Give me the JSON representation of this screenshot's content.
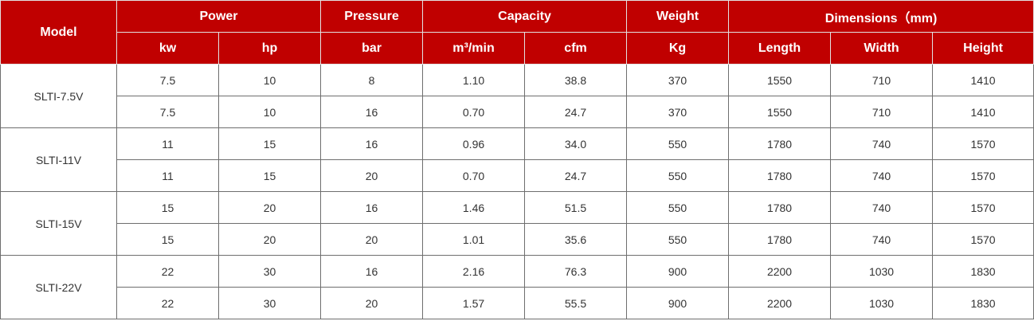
{
  "header": {
    "model": "Model",
    "power": "Power",
    "pressure": "Pressure",
    "capacity": "Capacity",
    "weight": "Weight",
    "dimensions": "Dimensions（mm)",
    "sub": [
      "kw",
      "hp",
      "bar",
      "m³/min",
      "cfm",
      "Kg",
      "Length",
      "Width",
      "Height"
    ]
  },
  "models": [
    {
      "name": "SLTI-7.5V",
      "rows": [
        [
          "7.5",
          "10",
          "8",
          "1.10",
          "38.8",
          "370",
          "1550",
          "710",
          "1410"
        ],
        [
          "7.5",
          "10",
          "16",
          "0.70",
          "24.7",
          "370",
          "1550",
          "710",
          "1410"
        ]
      ]
    },
    {
      "name": "SLTI-11V",
      "rows": [
        [
          "11",
          "15",
          "16",
          "0.96",
          "34.0",
          "550",
          "1780",
          "740",
          "1570"
        ],
        [
          "11",
          "15",
          "20",
          "0.70",
          "24.7",
          "550",
          "1780",
          "740",
          "1570"
        ]
      ]
    },
    {
      "name": "SLTI-15V",
      "rows": [
        [
          "15",
          "20",
          "16",
          "1.46",
          "51.5",
          "550",
          "1780",
          "740",
          "1570"
        ],
        [
          "15",
          "20",
          "20",
          "1.01",
          "35.6",
          "550",
          "1780",
          "740",
          "1570"
        ]
      ]
    },
    {
      "name": "SLTI-22V",
      "rows": [
        [
          "22",
          "30",
          "16",
          "2.16",
          "76.3",
          "900",
          "2200",
          "1030",
          "1830"
        ],
        [
          "22",
          "30",
          "20",
          "1.57",
          "55.5",
          "900",
          "2200",
          "1030",
          "1830"
        ]
      ]
    }
  ]
}
